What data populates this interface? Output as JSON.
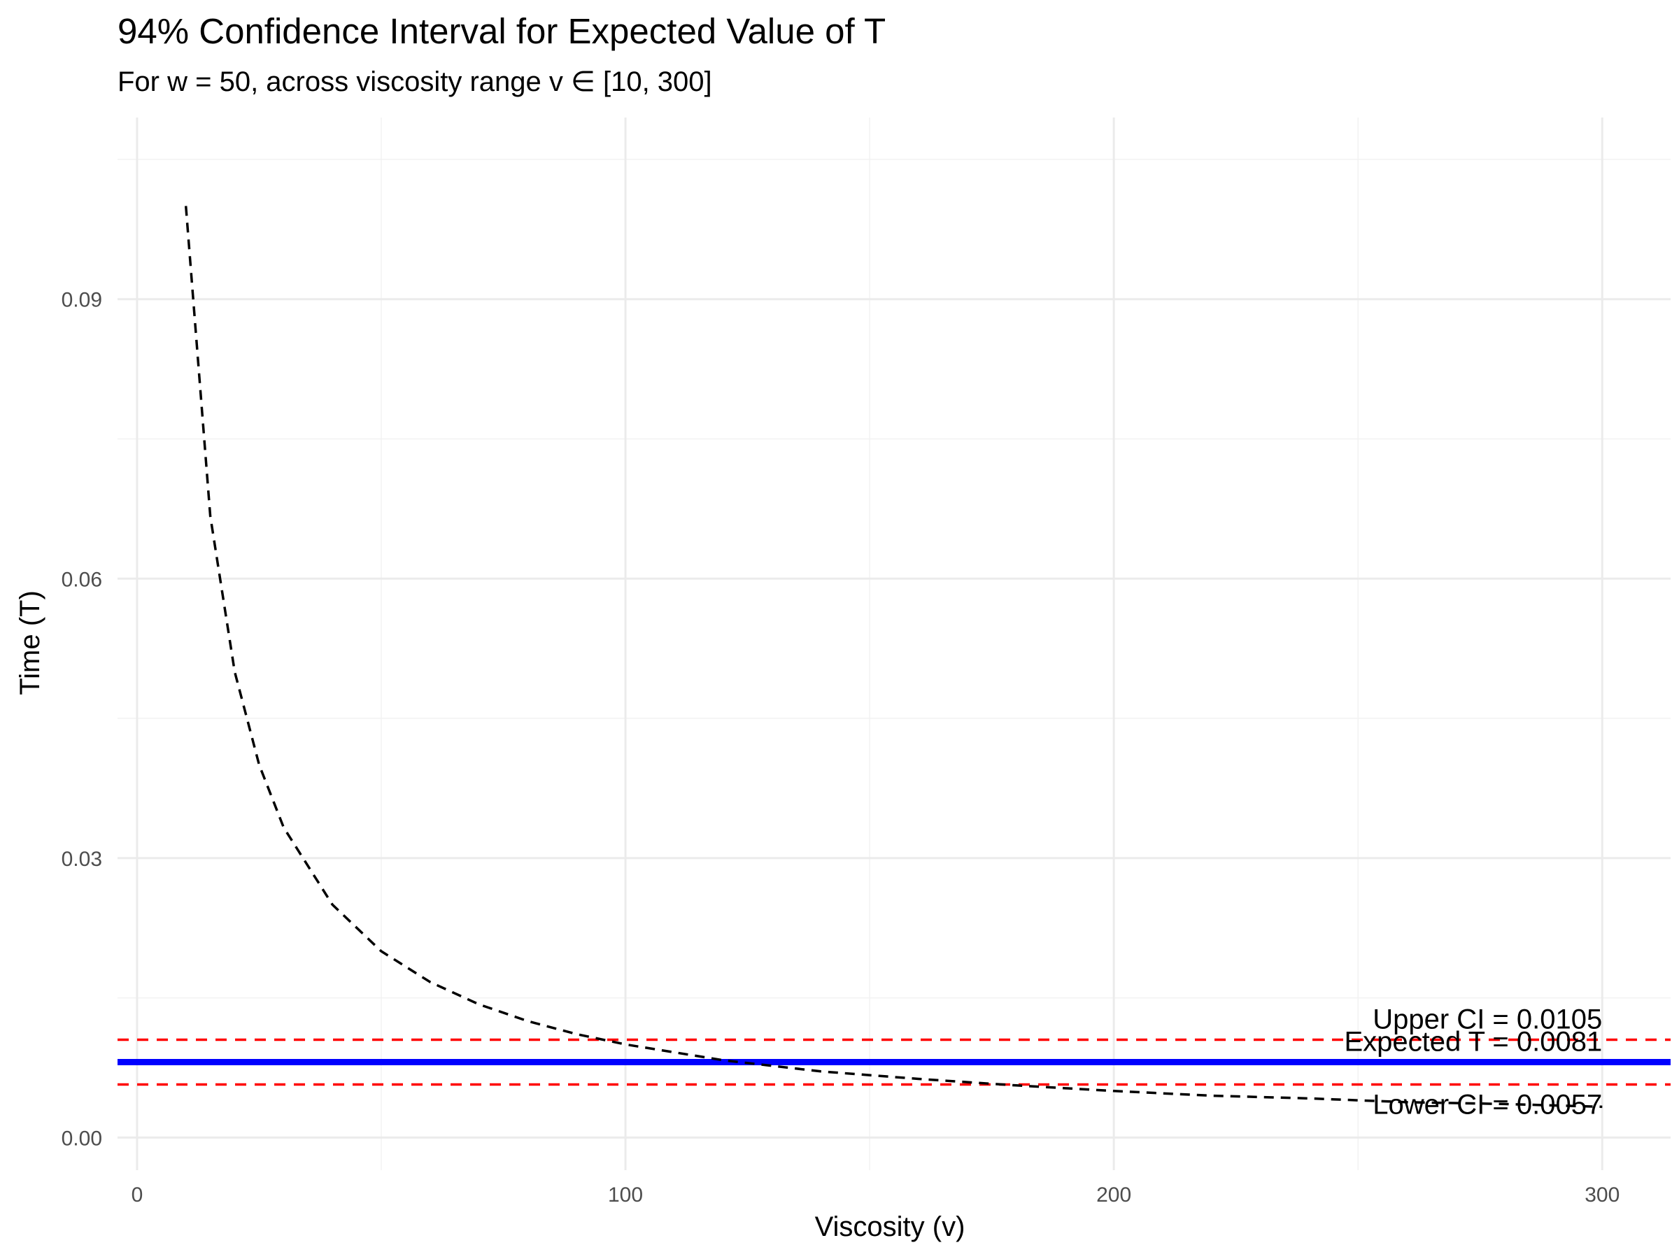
{
  "chart_data": {
    "type": "line",
    "title": "94% Confidence Interval for Expected Value of T",
    "subtitle": "For w = 50, across viscosity range v ∈ [10, 300]",
    "xlabel": "Viscosity (v)",
    "ylabel": "Time (T)",
    "xlim": [
      -4,
      314
    ],
    "ylim": [
      -0.0035,
      0.1095
    ],
    "x_ticks": [
      0,
      100,
      200,
      300
    ],
    "x_tick_labels": [
      "0",
      "100",
      "200",
      "300"
    ],
    "y_ticks": [
      0.0,
      0.03,
      0.06,
      0.09
    ],
    "y_tick_labels": [
      "0.00",
      "0.03",
      "0.06",
      "0.09"
    ],
    "grid": true,
    "curve": {
      "style": "dashed",
      "color": "#000000",
      "x": [
        10,
        15,
        20,
        25,
        30,
        40,
        50,
        60,
        70,
        80,
        90,
        100,
        120,
        140,
        160,
        180,
        200,
        220,
        240,
        260,
        280,
        300
      ],
      "y": [
        0.1,
        0.0667,
        0.05,
        0.04,
        0.0333,
        0.025,
        0.02,
        0.0167,
        0.0143,
        0.0125,
        0.0111,
        0.01,
        0.0083,
        0.0071,
        0.0063,
        0.0056,
        0.005,
        0.0045,
        0.0042,
        0.0038,
        0.0036,
        0.0033
      ]
    },
    "hlines": [
      {
        "y": 0.0105,
        "color": "#ff0000",
        "style": "dashed",
        "label": "Upper CI = 0.0105"
      },
      {
        "y": 0.0081,
        "color": "#0000ff",
        "style": "solid",
        "label": "Expected T = 0.0081"
      },
      {
        "y": 0.0057,
        "color": "#ff0000",
        "style": "dashed",
        "label": "Lower CI = 0.0057"
      }
    ],
    "annotation_x": 300
  }
}
